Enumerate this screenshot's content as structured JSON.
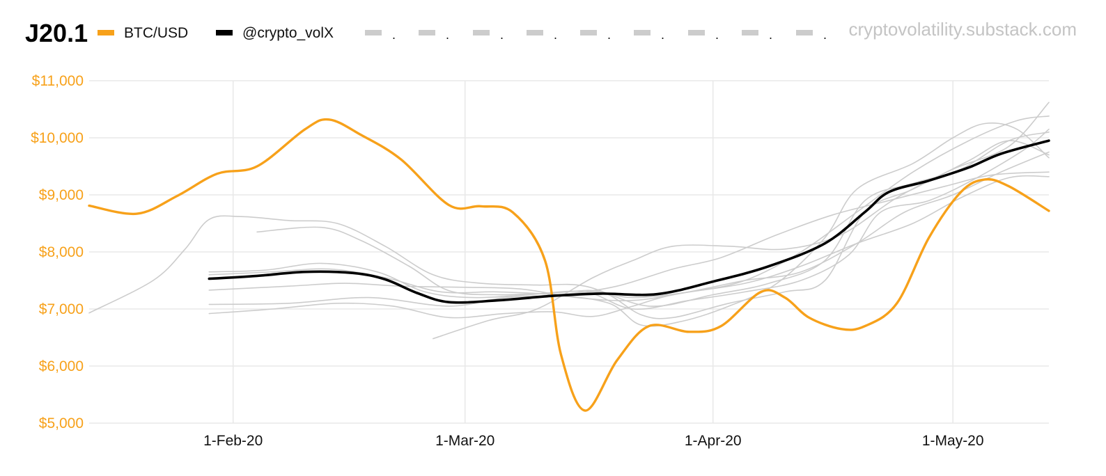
{
  "chart_data": {
    "type": "line",
    "title": "J20.1",
    "watermark": "cryptovolatility.substack.com",
    "xlabel": "",
    "ylabel": "",
    "x_start": "2020-01-14",
    "x_end": "2020-05-13",
    "xlim": [
      "2020-01-14",
      "2020-05-13"
    ],
    "ylim": [
      5000,
      11000
    ],
    "x_ticks": [
      {
        "date": "2020-02-01",
        "label": "1-Feb-20"
      },
      {
        "date": "2020-03-01",
        "label": "1-Mar-20"
      },
      {
        "date": "2020-04-01",
        "label": "1-Apr-20"
      },
      {
        "date": "2020-05-01",
        "label": "1-May-20"
      }
    ],
    "y_ticks": [
      {
        "value": 5000,
        "label": "$5,000"
      },
      {
        "value": 6000,
        "label": "$6,000"
      },
      {
        "value": 7000,
        "label": "$7,000"
      },
      {
        "value": 8000,
        "label": "$8,000"
      },
      {
        "value": 9000,
        "label": "$9,000"
      },
      {
        "value": 10000,
        "label": "$10,000"
      },
      {
        "value": 11000,
        "label": "$11,000"
      }
    ],
    "grid": true,
    "legend": {
      "placement": "top",
      "entries": [
        {
          "label": "BTC/USD",
          "color": "#f7a11a",
          "style": "solid"
        },
        {
          "label": "@crypto_volX",
          "color": "#000000",
          "style": "solid"
        },
        {
          "label": ".",
          "color": "#cccccc",
          "style": "solid"
        },
        {
          "label": ".",
          "color": "#cccccc",
          "style": "solid"
        },
        {
          "label": ".",
          "color": "#cccccc",
          "style": "solid"
        },
        {
          "label": ".",
          "color": "#cccccc",
          "style": "solid"
        },
        {
          "label": ".",
          "color": "#cccccc",
          "style": "solid"
        },
        {
          "label": ".",
          "color": "#cccccc",
          "style": "solid"
        },
        {
          "label": ".",
          "color": "#cccccc",
          "style": "solid"
        },
        {
          "label": ".",
          "color": "#cccccc",
          "style": "solid"
        },
        {
          "label": ".",
          "color": "#cccccc",
          "style": "solid"
        }
      ]
    },
    "series": [
      {
        "name": "BTC/USD",
        "color": "#f7a11a",
        "points": [
          [
            "2020-01-14",
            8810
          ],
          [
            "2020-01-20",
            8670
          ],
          [
            "2020-01-25",
            8980
          ],
          [
            "2020-01-30",
            9370
          ],
          [
            "2020-02-04",
            9500
          ],
          [
            "2020-02-10",
            10150
          ],
          [
            "2020-02-13",
            10320
          ],
          [
            "2020-02-17",
            10050
          ],
          [
            "2020-02-22",
            9620
          ],
          [
            "2020-02-28",
            8820
          ],
          [
            "2020-03-03",
            8800
          ],
          [
            "2020-03-07",
            8690
          ],
          [
            "2020-03-11",
            7850
          ],
          [
            "2020-03-13",
            6200
          ],
          [
            "2020-03-16",
            5220
          ],
          [
            "2020-03-20",
            6100
          ],
          [
            "2020-03-24",
            6700
          ],
          [
            "2020-03-29",
            6600
          ],
          [
            "2020-04-02",
            6700
          ],
          [
            "2020-04-07",
            7300
          ],
          [
            "2020-04-10",
            7200
          ],
          [
            "2020-04-13",
            6850
          ],
          [
            "2020-04-17",
            6650
          ],
          [
            "2020-04-20",
            6700
          ],
          [
            "2020-04-24",
            7100
          ],
          [
            "2020-04-28",
            8250
          ],
          [
            "2020-05-02",
            9050
          ],
          [
            "2020-05-05",
            9270
          ],
          [
            "2020-05-08",
            9150
          ],
          [
            "2020-05-13",
            8720
          ]
        ]
      },
      {
        "name": "@crypto_volX",
        "color": "#000000",
        "points": [
          [
            "2020-01-29",
            7530
          ],
          [
            "2020-02-04",
            7580
          ],
          [
            "2020-02-10",
            7650
          ],
          [
            "2020-02-16",
            7630
          ],
          [
            "2020-02-20",
            7520
          ],
          [
            "2020-02-24",
            7280
          ],
          [
            "2020-02-28",
            7120
          ],
          [
            "2020-03-05",
            7150
          ],
          [
            "2020-03-12",
            7230
          ],
          [
            "2020-03-18",
            7270
          ],
          [
            "2020-03-25",
            7260
          ],
          [
            "2020-04-01",
            7480
          ],
          [
            "2020-04-08",
            7750
          ],
          [
            "2020-04-15",
            8150
          ],
          [
            "2020-04-20",
            8700
          ],
          [
            "2020-04-23",
            9050
          ],
          [
            "2020-04-28",
            9250
          ],
          [
            "2020-05-03",
            9480
          ],
          [
            "2020-05-07",
            9720
          ],
          [
            "2020-05-13",
            9950
          ]
        ]
      },
      {
        "name": "",
        "color": "#cccccc",
        "points": [
          [
            "2020-01-14",
            6930
          ],
          [
            "2020-01-22",
            7500
          ],
          [
            "2020-01-26",
            8050
          ],
          [
            "2020-01-29",
            8570
          ],
          [
            "2020-02-02",
            8620
          ],
          [
            "2020-02-08",
            8550
          ],
          [
            "2020-02-14",
            8500
          ],
          [
            "2020-02-20",
            8100
          ],
          [
            "2020-02-26",
            7600
          ],
          [
            "2020-03-03",
            7450
          ],
          [
            "2020-03-10",
            7420
          ],
          [
            "2020-03-16",
            7400
          ],
          [
            "2020-03-24",
            7050
          ],
          [
            "2020-04-01",
            7250
          ],
          [
            "2020-04-08",
            7450
          ],
          [
            "2020-04-15",
            7850
          ],
          [
            "2020-04-20",
            8900
          ],
          [
            "2020-04-26",
            9200
          ],
          [
            "2020-05-02",
            9450
          ],
          [
            "2020-05-08",
            9950
          ],
          [
            "2020-05-13",
            10100
          ]
        ]
      },
      {
        "name": "",
        "color": "#cccccc",
        "points": [
          [
            "2020-02-04",
            8350
          ],
          [
            "2020-02-12",
            8430
          ],
          [
            "2020-02-17",
            8200
          ],
          [
            "2020-02-23",
            7750
          ],
          [
            "2020-02-28",
            7320
          ],
          [
            "2020-03-05",
            7250
          ],
          [
            "2020-03-12",
            7280
          ],
          [
            "2020-03-18",
            7300
          ],
          [
            "2020-03-23",
            6900
          ],
          [
            "2020-03-27",
            6850
          ],
          [
            "2020-04-03",
            7100
          ],
          [
            "2020-04-10",
            7300
          ],
          [
            "2020-04-15",
            7500
          ],
          [
            "2020-04-20",
            8700
          ],
          [
            "2020-04-26",
            9100
          ],
          [
            "2020-05-03",
            9600
          ],
          [
            "2020-05-08",
            9950
          ],
          [
            "2020-05-13",
            9700
          ]
        ]
      },
      {
        "name": "",
        "color": "#cccccc",
        "points": [
          [
            "2020-01-29",
            7650
          ],
          [
            "2020-02-05",
            7680
          ],
          [
            "2020-02-12",
            7800
          ],
          [
            "2020-02-19",
            7650
          ],
          [
            "2020-02-25",
            7300
          ],
          [
            "2020-03-02",
            7200
          ],
          [
            "2020-03-09",
            7250
          ],
          [
            "2020-03-16",
            7300
          ],
          [
            "2020-03-22",
            7000
          ],
          [
            "2020-03-29",
            7150
          ],
          [
            "2020-04-05",
            7300
          ],
          [
            "2020-04-12",
            7500
          ],
          [
            "2020-04-18",
            7950
          ],
          [
            "2020-04-22",
            8700
          ],
          [
            "2020-04-28",
            8900
          ],
          [
            "2020-05-04",
            9300
          ],
          [
            "2020-05-10",
            9800
          ],
          [
            "2020-05-13",
            10150
          ]
        ]
      },
      {
        "name": "",
        "color": "#cccccc",
        "points": [
          [
            "2020-01-29",
            7330
          ],
          [
            "2020-02-08",
            7400
          ],
          [
            "2020-02-15",
            7450
          ],
          [
            "2020-02-22",
            7400
          ],
          [
            "2020-03-01",
            7380
          ],
          [
            "2020-03-08",
            7350
          ],
          [
            "2020-03-15",
            7200
          ],
          [
            "2020-03-22",
            7150
          ],
          [
            "2020-03-29",
            7300
          ],
          [
            "2020-04-05",
            7500
          ],
          [
            "2020-04-12",
            7650
          ],
          [
            "2020-04-19",
            8150
          ],
          [
            "2020-04-25",
            8700
          ],
          [
            "2020-05-01",
            9000
          ],
          [
            "2020-05-07",
            9400
          ],
          [
            "2020-05-13",
            9750
          ]
        ]
      },
      {
        "name": "",
        "color": "#cccccc",
        "points": [
          [
            "2020-01-29",
            7080
          ],
          [
            "2020-02-08",
            7100
          ],
          [
            "2020-02-18",
            7200
          ],
          [
            "2020-02-28",
            7050
          ],
          [
            "2020-03-06",
            7200
          ],
          [
            "2020-03-13",
            7250
          ],
          [
            "2020-03-20",
            7400
          ],
          [
            "2020-03-27",
            7700
          ],
          [
            "2020-04-02",
            7900
          ],
          [
            "2020-04-09",
            8300
          ],
          [
            "2020-04-16",
            8650
          ],
          [
            "2020-04-23",
            8900
          ],
          [
            "2020-04-30",
            9150
          ],
          [
            "2020-05-06",
            9350
          ],
          [
            "2020-05-13",
            9400
          ]
        ]
      },
      {
        "name": "",
        "color": "#cccccc",
        "points": [
          [
            "2020-01-29",
            6920
          ],
          [
            "2020-02-06",
            7000
          ],
          [
            "2020-02-14",
            7100
          ],
          [
            "2020-02-21",
            7050
          ],
          [
            "2020-02-28",
            6850
          ],
          [
            "2020-03-06",
            6920
          ],
          [
            "2020-03-12",
            6950
          ],
          [
            "2020-03-17",
            6870
          ],
          [
            "2020-03-22",
            7050
          ],
          [
            "2020-03-27",
            7250
          ],
          [
            "2020-04-05",
            7450
          ],
          [
            "2020-04-12",
            7750
          ],
          [
            "2020-04-19",
            8150
          ],
          [
            "2020-04-26",
            8500
          ],
          [
            "2020-05-02",
            8950
          ],
          [
            "2020-05-08",
            9300
          ],
          [
            "2020-05-13",
            9320
          ]
        ]
      },
      {
        "name": "",
        "color": "#cccccc",
        "points": [
          [
            "2020-02-26",
            6480
          ],
          [
            "2020-03-04",
            6800
          ],
          [
            "2020-03-10",
            7000
          ],
          [
            "2020-03-17",
            7550
          ],
          [
            "2020-03-22",
            7850
          ],
          [
            "2020-03-27",
            8100
          ],
          [
            "2020-04-03",
            8100
          ],
          [
            "2020-04-10",
            8050
          ],
          [
            "2020-04-17",
            8300
          ],
          [
            "2020-04-24",
            8950
          ],
          [
            "2020-05-01",
            9450
          ],
          [
            "2020-05-08",
            9850
          ],
          [
            "2020-05-13",
            10620
          ]
        ]
      },
      {
        "name": "",
        "color": "#cccccc",
        "points": [
          [
            "2020-01-29",
            7600
          ],
          [
            "2020-02-06",
            7650
          ],
          [
            "2020-02-13",
            7700
          ],
          [
            "2020-02-20",
            7550
          ],
          [
            "2020-02-27",
            7300
          ],
          [
            "2020-03-05",
            7300
          ],
          [
            "2020-03-12",
            7250
          ],
          [
            "2020-03-19",
            7100
          ],
          [
            "2020-03-23",
            6720
          ],
          [
            "2020-03-28",
            6780
          ],
          [
            "2020-04-03",
            7050
          ],
          [
            "2020-04-09",
            7450
          ],
          [
            "2020-04-15",
            8250
          ],
          [
            "2020-04-19",
            9100
          ],
          [
            "2020-04-26",
            9550
          ],
          [
            "2020-05-01",
            10000
          ],
          [
            "2020-05-05",
            10250
          ],
          [
            "2020-05-09",
            10150
          ],
          [
            "2020-05-13",
            9650
          ]
        ]
      },
      {
        "name": "",
        "color": "#cccccc",
        "points": [
          [
            "2020-03-10",
            7200
          ],
          [
            "2020-03-17",
            7300
          ],
          [
            "2020-03-22",
            7200
          ],
          [
            "2020-03-29",
            7300
          ],
          [
            "2020-04-05",
            7500
          ],
          [
            "2020-04-12",
            8000
          ],
          [
            "2020-04-19",
            8700
          ],
          [
            "2020-04-26",
            9400
          ],
          [
            "2020-05-03",
            9950
          ],
          [
            "2020-05-09",
            10300
          ],
          [
            "2020-05-13",
            10380
          ]
        ]
      }
    ]
  }
}
